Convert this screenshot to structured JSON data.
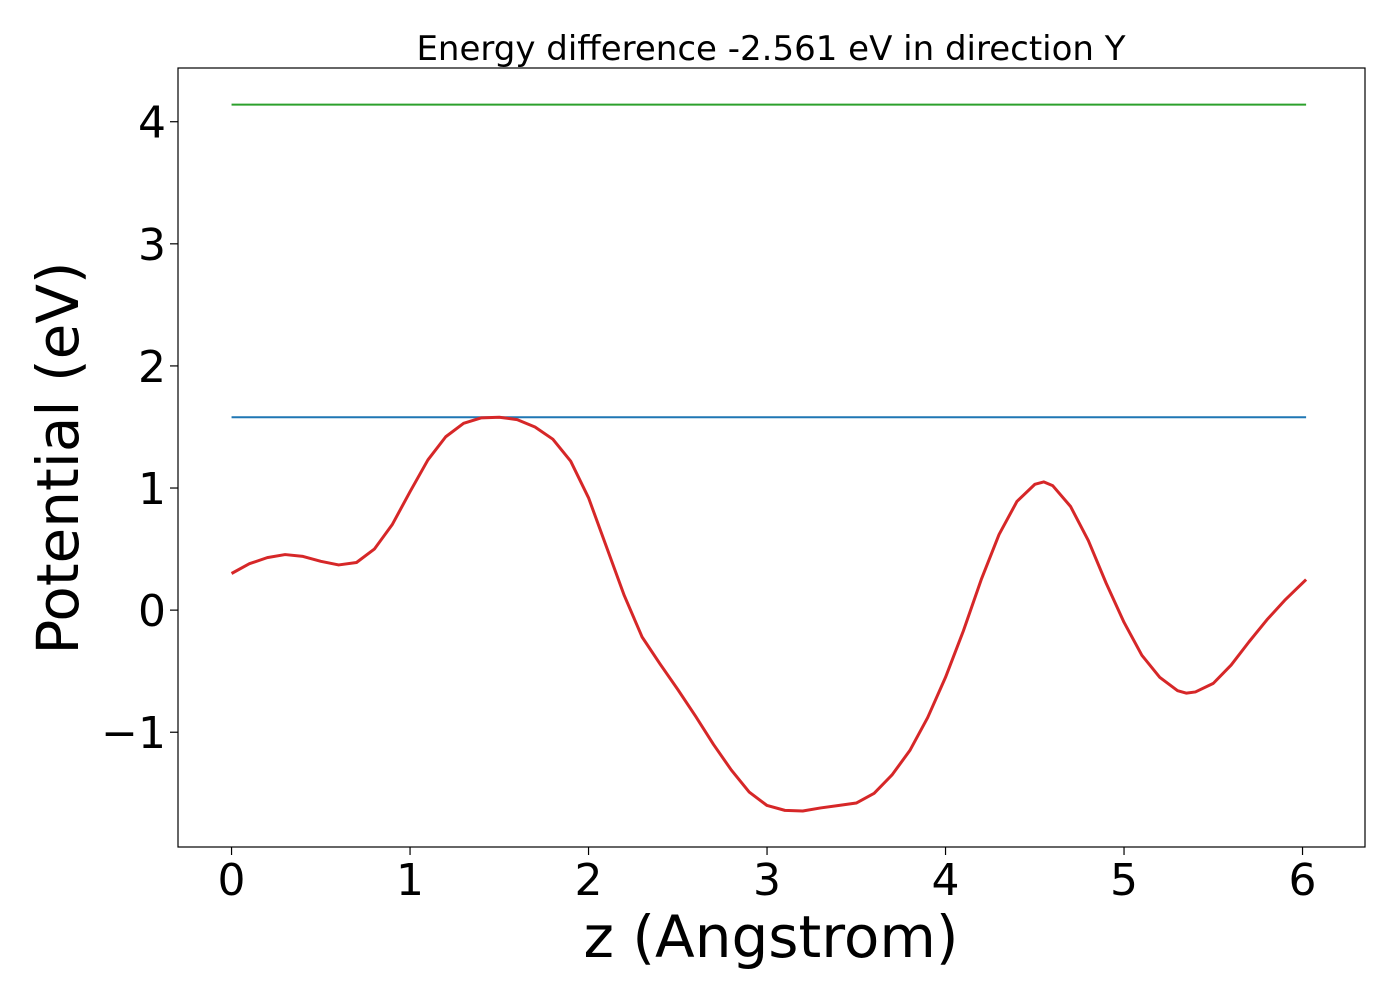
{
  "chart_data": {
    "type": "line",
    "title": "Energy difference -2.561 eV in direction Y",
    "xlabel": "z (Angstrom)",
    "ylabel": "Potential (eV)",
    "xlim": [
      -0.3,
      6.35
    ],
    "ylim": [
      -1.94,
      4.44
    ],
    "x_ticks": [
      0,
      1,
      2,
      3,
      4,
      5,
      6
    ],
    "x_tick_labels": [
      "0",
      "1",
      "2",
      "3",
      "4",
      "5",
      "6"
    ],
    "y_ticks": [
      -1,
      0,
      1,
      2,
      3,
      4
    ],
    "y_tick_labels": [
      "−1",
      "0",
      "1",
      "2",
      "3",
      "4"
    ],
    "grid": false,
    "legend": "none",
    "series": [
      {
        "color": "#2ca02c",
        "style": "horizontal",
        "x": [
          0,
          6.02
        ],
        "y": [
          4.14,
          4.14
        ]
      },
      {
        "color": "#1f77b4",
        "style": "horizontal",
        "x": [
          0,
          6.02
        ],
        "y": [
          1.58,
          1.58
        ]
      },
      {
        "color": "#d62728",
        "style": "curve",
        "x": [
          0,
          0.1,
          0.2,
          0.3,
          0.4,
          0.5,
          0.6,
          0.7,
          0.8,
          0.9,
          1.0,
          1.1,
          1.2,
          1.3,
          1.4,
          1.5,
          1.6,
          1.7,
          1.8,
          1.9,
          2.0,
          2.1,
          2.2,
          2.3,
          2.4,
          2.5,
          2.6,
          2.7,
          2.8,
          2.9,
          3.0,
          3.1,
          3.2,
          3.3,
          3.4,
          3.5,
          3.6,
          3.7,
          3.8,
          3.9,
          4.0,
          4.1,
          4.2,
          4.3,
          4.4,
          4.5,
          4.55,
          4.6,
          4.7,
          4.8,
          4.9,
          5.0,
          5.1,
          5.2,
          5.3,
          5.35,
          5.4,
          5.5,
          5.6,
          5.7,
          5.8,
          5.9,
          6.02
        ],
        "y": [
          0.3,
          0.38,
          0.43,
          0.455,
          0.44,
          0.4,
          0.37,
          0.39,
          0.5,
          0.7,
          0.97,
          1.23,
          1.42,
          1.53,
          1.575,
          1.58,
          1.56,
          1.5,
          1.4,
          1.22,
          0.92,
          0.52,
          0.12,
          -0.22,
          -0.44,
          -0.65,
          -0.87,
          -1.1,
          -1.31,
          -1.49,
          -1.6,
          -1.64,
          -1.645,
          -1.62,
          -1.6,
          -1.58,
          -1.5,
          -1.35,
          -1.15,
          -0.88,
          -0.55,
          -0.17,
          0.25,
          0.62,
          0.89,
          1.03,
          1.05,
          1.02,
          0.85,
          0.57,
          0.22,
          -0.1,
          -0.37,
          -0.55,
          -0.66,
          -0.68,
          -0.67,
          -0.6,
          -0.45,
          -0.26,
          -0.08,
          0.08,
          0.25
        ]
      }
    ]
  }
}
